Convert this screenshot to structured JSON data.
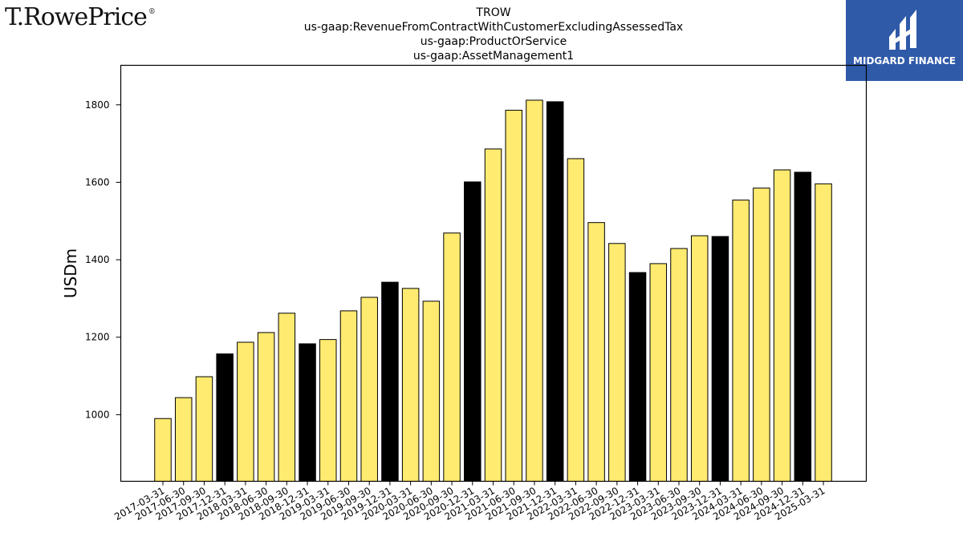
{
  "brand_left": {
    "name": "T.RowePrice",
    "mark": "®"
  },
  "brand_right": {
    "name": "MIDGARD FINANCE",
    "color": "#2f5aa8"
  },
  "chart_data": {
    "type": "bar",
    "title": [
      "TROW",
      "us-gaap:RevenueFromContractWithCustomerExcludingAssessedTax",
      "us-gaap:ProductOrService",
      "us-gaap:AssetManagement1"
    ],
    "xlabel": "",
    "ylabel": "USDm",
    "ylim": [
      828,
      1902
    ],
    "yticks": [
      1000,
      1200,
      1400,
      1600,
      1800
    ],
    "grid": false,
    "legend": "none",
    "colors": {
      "quarter": "#ffeb70",
      "year_end": "#000000"
    },
    "categories": [
      "2017-03-31",
      "2017-06-30",
      "2017-09-30",
      "2017-12-31",
      "2018-03-31",
      "2018-06-30",
      "2018-09-30",
      "2018-12-31",
      "2019-03-31",
      "2019-06-30",
      "2019-09-30",
      "2019-12-31",
      "2020-03-31",
      "2020-06-30",
      "2020-09-30",
      "2020-12-31",
      "2021-03-31",
      "2021-06-30",
      "2021-09-30",
      "2021-12-31",
      "2022-03-31",
      "2022-06-30",
      "2022-09-30",
      "2022-12-31",
      "2023-03-31",
      "2023-06-30",
      "2023-09-30",
      "2023-12-31",
      "2024-03-31",
      "2024-06-30",
      "2024-09-30",
      "2024-12-31",
      "2025-03-31"
    ],
    "values": [
      990,
      1044,
      1098,
      1157,
      1187,
      1212,
      1262,
      1183,
      1194,
      1268,
      1303,
      1342,
      1326,
      1293,
      1469,
      1601,
      1686,
      1786,
      1812,
      1808,
      1661,
      1496,
      1442,
      1367,
      1390,
      1429,
      1462,
      1460,
      1554,
      1585,
      1632,
      1626,
      1596
    ],
    "year_end": [
      false,
      false,
      false,
      true,
      false,
      false,
      false,
      true,
      false,
      false,
      false,
      true,
      false,
      false,
      false,
      true,
      false,
      false,
      false,
      true,
      false,
      false,
      false,
      true,
      false,
      false,
      false,
      true,
      false,
      false,
      false,
      true,
      false
    ]
  }
}
